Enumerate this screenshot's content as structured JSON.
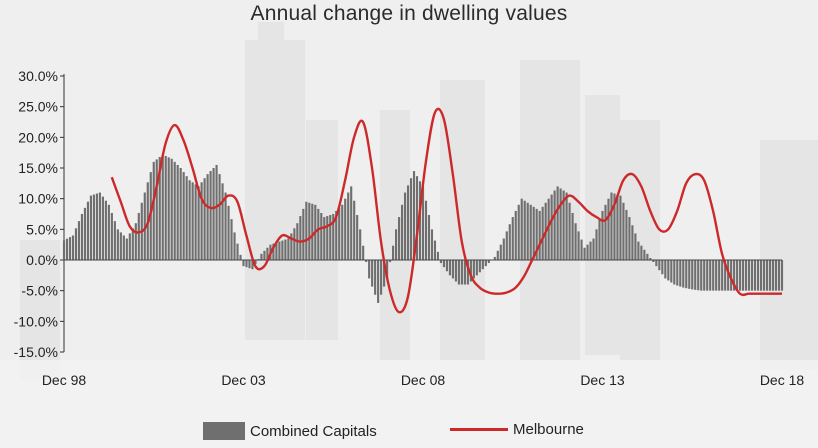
{
  "colors": {
    "bars": "#6f6f6f",
    "line": "#cc2a2a",
    "axis": "#333333",
    "text": "#222222"
  },
  "chart_data": {
    "type": "bar",
    "title": "Annual change in dwelling values",
    "xlabel": "",
    "ylabel": "",
    "ylim": [
      -15,
      30
    ],
    "y_ticks": [
      "30.0%",
      "25.0%",
      "20.0%",
      "15.0%",
      "10.0%",
      "5.0%",
      "0.0%",
      "-5.0%",
      "-10.0%",
      "-15.0%"
    ],
    "y_tick_values": [
      30,
      25,
      20,
      15,
      10,
      5,
      0,
      -5,
      -10,
      -15
    ],
    "x_range": [
      1998.92,
      2018.92
    ],
    "x_ticks": [
      "Dec 98",
      "Dec 03",
      "Dec 08",
      "Dec 13",
      "Dec 18"
    ],
    "x_tick_values": [
      1998.92,
      2003.92,
      2008.92,
      2013.92,
      2018.92
    ],
    "grid": false,
    "legend_position": "bottom",
    "series": [
      {
        "name": "Combined Capitals",
        "type": "bar",
        "x": [
          1998.92,
          1999.17,
          1999.42,
          1999.67,
          1999.92,
          2000.17,
          2000.42,
          2000.67,
          2000.92,
          2001.17,
          2001.42,
          2001.67,
          2001.92,
          2002.17,
          2002.42,
          2002.67,
          2002.92,
          2003.17,
          2003.42,
          2003.67,
          2003.92,
          2004.17,
          2004.42,
          2004.67,
          2004.92,
          2005.17,
          2005.42,
          2005.67,
          2005.92,
          2006.17,
          2006.42,
          2006.67,
          2006.92,
          2007.17,
          2007.42,
          2007.67,
          2007.92,
          2008.17,
          2008.42,
          2008.67,
          2008.92,
          2009.17,
          2009.42,
          2009.67,
          2009.92,
          2010.17,
          2010.42,
          2010.67,
          2010.92,
          2011.17,
          2011.42,
          2011.67,
          2011.92,
          2012.17,
          2012.42,
          2012.67,
          2012.92,
          2013.17,
          2013.42,
          2013.67,
          2013.92,
          2014.17,
          2014.42,
          2014.67,
          2014.92,
          2015.17,
          2015.42,
          2015.67,
          2015.92,
          2016.17,
          2016.42,
          2016.67,
          2016.92,
          2017.17,
          2017.42,
          2017.67,
          2017.92,
          2018.17,
          2018.42,
          2018.67,
          2018.92
        ],
        "values": [
          3.2,
          4.0,
          7.5,
          10.5,
          11.0,
          9.0,
          5.0,
          3.5,
          6.0,
          11.0,
          16.0,
          17.2,
          16.5,
          15.0,
          13.0,
          12.0,
          14.0,
          15.5,
          11.0,
          4.5,
          -1.0,
          -1.5,
          1.0,
          2.5,
          3.0,
          3.5,
          6.0,
          9.5,
          9.0,
          7.0,
          7.5,
          9.0,
          12.0,
          5.0,
          -3.0,
          -7.0,
          -3.0,
          5.0,
          11.0,
          14.5,
          12.0,
          5.0,
          -0.5,
          -2.5,
          -4.0,
          -4.0,
          -2.5,
          -1.0,
          0.5,
          3.5,
          7.0,
          10.0,
          9.0,
          8.0,
          10.0,
          12.0,
          11.0,
          6.0,
          2.0,
          3.5,
          8.0,
          11.0,
          10.5,
          7.0,
          3.0,
          1.0,
          -1.0,
          -3.0,
          -4.0,
          -4.5,
          -4.8,
          -5.0,
          -5.0,
          -5.0,
          -5.0,
          -5.0,
          -5.0,
          -5.0,
          -5.0,
          -5.0,
          -5.0
        ]
      },
      {
        "name": "Melbourne",
        "type": "line",
        "x": [
          2000.25,
          2000.5,
          2000.75,
          2001.0,
          2001.25,
          2001.5,
          2001.75,
          2002.0,
          2002.25,
          2002.5,
          2002.75,
          2003.0,
          2003.25,
          2003.5,
          2003.75,
          2004.0,
          2004.25,
          2004.5,
          2004.75,
          2005.0,
          2005.25,
          2005.5,
          2005.75,
          2006.0,
          2006.25,
          2006.5,
          2006.75,
          2007.0,
          2007.25,
          2007.5,
          2007.75,
          2008.0,
          2008.25,
          2008.5,
          2008.75,
          2009.0,
          2009.25,
          2009.5,
          2009.75,
          2010.0,
          2010.25,
          2010.5,
          2010.75,
          2011.0,
          2011.25,
          2011.5,
          2011.75,
          2012.0,
          2012.25,
          2012.5,
          2012.75,
          2013.0,
          2013.25,
          2013.5,
          2013.75,
          2014.0,
          2014.25,
          2014.5,
          2014.75,
          2015.0,
          2015.25,
          2015.5,
          2015.75,
          2016.0,
          2016.25,
          2016.5,
          2016.75,
          2017.0,
          2017.25,
          2017.5,
          2017.75,
          2018.0,
          2018.25,
          2018.5,
          2018.75,
          2018.92
        ],
        "values": [
          13.5,
          9.5,
          5.5,
          4.5,
          6.0,
          12.0,
          19.0,
          22.0,
          19.5,
          15.0,
          10.0,
          8.5,
          9.0,
          10.5,
          9.5,
          4.0,
          -1.0,
          -1.0,
          2.0,
          4.0,
          3.5,
          3.0,
          3.5,
          5.0,
          5.5,
          7.0,
          13.0,
          20.0,
          22.5,
          15.0,
          3.0,
          -5.0,
          -8.5,
          -6.0,
          4.0,
          16.0,
          24.0,
          23.0,
          14.0,
          3.0,
          -2.5,
          -4.5,
          -5.3,
          -5.5,
          -5.3,
          -4.5,
          -2.5,
          0.5,
          3.5,
          6.5,
          9.0,
          10.5,
          9.5,
          8.0,
          7.0,
          6.5,
          9.0,
          13.0,
          14.0,
          12.0,
          8.0,
          5.0,
          5.0,
          8.0,
          12.5,
          14.0,
          13.0,
          8.0,
          1.0,
          -3.0,
          -5.5,
          -5.5,
          -5.5,
          -5.5,
          -5.5,
          -5.5
        ]
      }
    ]
  },
  "legend": {
    "bars_label": "Combined Capitals",
    "line_label": "Melbourne"
  }
}
